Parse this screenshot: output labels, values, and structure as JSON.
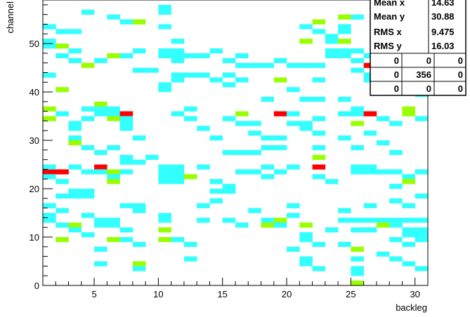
{
  "chart_data": {
    "type": "heatmap",
    "xlabel": "backleg",
    "ylabel": "channel",
    "xlim": [
      1,
      31
    ],
    "ylim": [
      0,
      59
    ],
    "x_ticks": [
      "5",
      "10",
      "15",
      "20",
      "25",
      "30"
    ],
    "y_ticks": [
      "0",
      "10",
      "20",
      "30",
      "40",
      "50"
    ],
    "colors": {
      "low": "#33ffff",
      "mid": "#99ff00",
      "high": "#ff0000"
    },
    "cells": [
      [
        1,
        53,
        1
      ],
      [
        2,
        52,
        1
      ],
      [
        3,
        52,
        1
      ],
      [
        6,
        55,
        1
      ],
      [
        7,
        54,
        1
      ],
      [
        4,
        56,
        1
      ],
      [
        1,
        50,
        1
      ],
      [
        1,
        49,
        1
      ],
      [
        2,
        47,
        1
      ],
      [
        3,
        48,
        1
      ],
      [
        3,
        46,
        1
      ],
      [
        5,
        46,
        1
      ],
      [
        4,
        45,
        2
      ],
      [
        6,
        47,
        2
      ],
      [
        7,
        47,
        1
      ],
      [
        8,
        48,
        1
      ],
      [
        8,
        44,
        1
      ],
      [
        9,
        44,
        1
      ],
      [
        2,
        49,
        2
      ],
      [
        8,
        54,
        2
      ],
      [
        10,
        57,
        1
      ],
      [
        10,
        56,
        1
      ],
      [
        10,
        53,
        1
      ],
      [
        10,
        48,
        1
      ],
      [
        10,
        47,
        1
      ],
      [
        11,
        50,
        1
      ],
      [
        11,
        48,
        1
      ],
      [
        11,
        47,
        1
      ],
      [
        11,
        46,
        1
      ],
      [
        12,
        47,
        1
      ],
      [
        13,
        47,
        1
      ],
      [
        14,
        48,
        1
      ],
      [
        15,
        46,
        1
      ],
      [
        16,
        47,
        1
      ],
      [
        11,
        42,
        1
      ],
      [
        11,
        43,
        1
      ],
      [
        10,
        40,
        1
      ],
      [
        10,
        41,
        1
      ],
      [
        12,
        43,
        1
      ],
      [
        13,
        43,
        1
      ],
      [
        14,
        42,
        1
      ],
      [
        15,
        43,
        1
      ],
      [
        15,
        41,
        1
      ],
      [
        16,
        45,
        1
      ],
      [
        17,
        45,
        1
      ],
      [
        18,
        45,
        1
      ],
      [
        19,
        46,
        1
      ],
      [
        20,
        45,
        1
      ],
      [
        21,
        45,
        1
      ],
      [
        22,
        45,
        1
      ],
      [
        22,
        42,
        1
      ],
      [
        19,
        42,
        2
      ],
      [
        20,
        40,
        1
      ],
      [
        16,
        42,
        1
      ],
      [
        21,
        53,
        1
      ],
      [
        22,
        52,
        1
      ],
      [
        22,
        54,
        2
      ],
      [
        23,
        51,
        1
      ],
      [
        21,
        50,
        2
      ],
      [
        23,
        50,
        1
      ],
      [
        24,
        52,
        1
      ],
      [
        24,
        53,
        1
      ],
      [
        24,
        55,
        2
      ],
      [
        24,
        50,
        2
      ],
      [
        23,
        47,
        1
      ],
      [
        23,
        48,
        1
      ],
      [
        24,
        48,
        1
      ],
      [
        24,
        47,
        1
      ],
      [
        25,
        48,
        1
      ],
      [
        25,
        46,
        1
      ],
      [
        26,
        47,
        1
      ],
      [
        26,
        45,
        3
      ],
      [
        27,
        45,
        1
      ],
      [
        28,
        45,
        1
      ],
      [
        29,
        47,
        1
      ],
      [
        30,
        47,
        1
      ],
      [
        27,
        50,
        1
      ],
      [
        30,
        46,
        1
      ],
      [
        25,
        59,
        1
      ],
      [
        26,
        59,
        1
      ],
      [
        25,
        55,
        1
      ],
      [
        25,
        44,
        1
      ],
      [
        26,
        43,
        1
      ],
      [
        26,
        42,
        1
      ],
      [
        27,
        40,
        1
      ],
      [
        29,
        41,
        1
      ],
      [
        30,
        39,
        1
      ],
      [
        1,
        43,
        1
      ],
      [
        2,
        40,
        2
      ],
      [
        1,
        36,
        2
      ],
      [
        1,
        34,
        2
      ],
      [
        2,
        35,
        1
      ],
      [
        3,
        32,
        1
      ],
      [
        3,
        33,
        1
      ],
      [
        4,
        34,
        1
      ],
      [
        4,
        36,
        1
      ],
      [
        5,
        36,
        1
      ],
      [
        5,
        37,
        2
      ],
      [
        5,
        35,
        1
      ],
      [
        6,
        36,
        1
      ],
      [
        6,
        35,
        1
      ],
      [
        6,
        34,
        2
      ],
      [
        7,
        35,
        3
      ],
      [
        7,
        34,
        1
      ],
      [
        7,
        33,
        1
      ],
      [
        7,
        32,
        1
      ],
      [
        3,
        30,
        1
      ],
      [
        3,
        29,
        2
      ],
      [
        4,
        28,
        1
      ],
      [
        5,
        27,
        1
      ],
      [
        6,
        28,
        1
      ],
      [
        8,
        30,
        1
      ],
      [
        9,
        26,
        1
      ],
      [
        8,
        25,
        1
      ],
      [
        7,
        26,
        1
      ],
      [
        11,
        35,
        1
      ],
      [
        12,
        34,
        1
      ],
      [
        12,
        36,
        1
      ],
      [
        13,
        32,
        1
      ],
      [
        14,
        30,
        1
      ],
      [
        15,
        34,
        1
      ],
      [
        16,
        35,
        2
      ],
      [
        16,
        33,
        1
      ],
      [
        17,
        33,
        1
      ],
      [
        17,
        31,
        1
      ],
      [
        18,
        30,
        1
      ],
      [
        15,
        27,
        1
      ],
      [
        16,
        27,
        1
      ],
      [
        17,
        27,
        1
      ],
      [
        18,
        28,
        1
      ],
      [
        19,
        28,
        1
      ],
      [
        19,
        30,
        1
      ],
      [
        18,
        38,
        1
      ],
      [
        19,
        35,
        3
      ],
      [
        20,
        35,
        1
      ],
      [
        20,
        33,
        1
      ],
      [
        21,
        33,
        1
      ],
      [
        21,
        32,
        1
      ],
      [
        22,
        34,
        1
      ],
      [
        22,
        31,
        1
      ],
      [
        22,
        28,
        1
      ],
      [
        21,
        38,
        1
      ],
      [
        22,
        38,
        1
      ],
      [
        24,
        38,
        1
      ],
      [
        24,
        35,
        1
      ],
      [
        25,
        36,
        1
      ],
      [
        25,
        35,
        1
      ],
      [
        26,
        35,
        3
      ],
      [
        27,
        34,
        1
      ],
      [
        28,
        33,
        1
      ],
      [
        29,
        35,
        2
      ],
      [
        29,
        36,
        2
      ],
      [
        30,
        34,
        1
      ],
      [
        25,
        33,
        2
      ],
      [
        26,
        31,
        1
      ],
      [
        27,
        29,
        1
      ],
      [
        28,
        27,
        1
      ],
      [
        24,
        30,
        1
      ],
      [
        25,
        28,
        1
      ],
      [
        1,
        23,
        3
      ],
      [
        2,
        23,
        3
      ],
      [
        1,
        22,
        1
      ],
      [
        1,
        24,
        1
      ],
      [
        3,
        24,
        1
      ],
      [
        4,
        23,
        1
      ],
      [
        5,
        24,
        3
      ],
      [
        5,
        23,
        1
      ],
      [
        6,
        23,
        2
      ],
      [
        6,
        22,
        1
      ],
      [
        6,
        21,
        2
      ],
      [
        7,
        25,
        1
      ],
      [
        7,
        23,
        1
      ],
      [
        2,
        21,
        1
      ],
      [
        3,
        19,
        1
      ],
      [
        4,
        19,
        1
      ],
      [
        2,
        18,
        1
      ],
      [
        3,
        18,
        1
      ],
      [
        4,
        18,
        1
      ],
      [
        1,
        16,
        1
      ],
      [
        2,
        15,
        1
      ],
      [
        10,
        24,
        1
      ],
      [
        11,
        24,
        1
      ],
      [
        10,
        23,
        1
      ],
      [
        11,
        23,
        1
      ],
      [
        10,
        22,
        1
      ],
      [
        11,
        22,
        1
      ],
      [
        10,
        21,
        1
      ],
      [
        11,
        21,
        1
      ],
      [
        12,
        22,
        2
      ],
      [
        13,
        24,
        1
      ],
      [
        14,
        21,
        1
      ],
      [
        15,
        20,
        1
      ],
      [
        15,
        19,
        1
      ],
      [
        14,
        19,
        1
      ],
      [
        16,
        23,
        1
      ],
      [
        17,
        23,
        1
      ],
      [
        18,
        24,
        1
      ],
      [
        18,
        22,
        1
      ],
      [
        19,
        23,
        1
      ],
      [
        20,
        24,
        1
      ],
      [
        22,
        24,
        3
      ],
      [
        22,
        26,
        2
      ],
      [
        22,
        22,
        1
      ],
      [
        23,
        21,
        1
      ],
      [
        25,
        24,
        1
      ],
      [
        25,
        23,
        1
      ],
      [
        26,
        24,
        1
      ],
      [
        26,
        23,
        1
      ],
      [
        27,
        23,
        1
      ],
      [
        28,
        23,
        1
      ],
      [
        29,
        22,
        1
      ],
      [
        30,
        23,
        1
      ],
      [
        29,
        21,
        2
      ],
      [
        28,
        20,
        1
      ],
      [
        30,
        18,
        1
      ],
      [
        29,
        16,
        1
      ],
      [
        28,
        17,
        1
      ],
      [
        1,
        14,
        1
      ],
      [
        1,
        13,
        1
      ],
      [
        2,
        12,
        1
      ],
      [
        3,
        12,
        2
      ],
      [
        3,
        11,
        1
      ],
      [
        2,
        9,
        2
      ],
      [
        4,
        14,
        1
      ],
      [
        5,
        13,
        1
      ],
      [
        5,
        12,
        1
      ],
      [
        6,
        13,
        1
      ],
      [
        6,
        12,
        1
      ],
      [
        7,
        16,
        1
      ],
      [
        8,
        15,
        1
      ],
      [
        8,
        16,
        1
      ],
      [
        7,
        11,
        1
      ],
      [
        6,
        9,
        2
      ],
      [
        7,
        9,
        1
      ],
      [
        4,
        10,
        1
      ],
      [
        5,
        7,
        1
      ],
      [
        8,
        8,
        1
      ],
      [
        8,
        4,
        2
      ],
      [
        8,
        3,
        1
      ],
      [
        5,
        4,
        1
      ],
      [
        10,
        14,
        1
      ],
      [
        10,
        13,
        1
      ],
      [
        10,
        11,
        2
      ],
      [
        10,
        9,
        2
      ],
      [
        11,
        9,
        1
      ],
      [
        12,
        8,
        1
      ],
      [
        13,
        13,
        1
      ],
      [
        13,
        16,
        1
      ],
      [
        14,
        17,
        1
      ],
      [
        15,
        13,
        1
      ],
      [
        16,
        12,
        1
      ],
      [
        17,
        15,
        1
      ],
      [
        18,
        13,
        1
      ],
      [
        18,
        12,
        2
      ],
      [
        19,
        13,
        2
      ],
      [
        19,
        12,
        1
      ],
      [
        20,
        14,
        1
      ],
      [
        20,
        16,
        1
      ],
      [
        21,
        12,
        2
      ],
      [
        21,
        10,
        1
      ],
      [
        21,
        9,
        1
      ],
      [
        22,
        8,
        1
      ],
      [
        20,
        7,
        1
      ],
      [
        21,
        4,
        1
      ],
      [
        21,
        5,
        1
      ],
      [
        22,
        3,
        1
      ],
      [
        12,
        5,
        1
      ],
      [
        24,
        13,
        1
      ],
      [
        25,
        13,
        1
      ],
      [
        26,
        13,
        1
      ],
      [
        27,
        13,
        1
      ],
      [
        28,
        13,
        1
      ],
      [
        29,
        13,
        1
      ],
      [
        30,
        13,
        1
      ],
      [
        25,
        11,
        1
      ],
      [
        26,
        11,
        1
      ],
      [
        27,
        12,
        2
      ],
      [
        28,
        12,
        1
      ],
      [
        29,
        11,
        1
      ],
      [
        30,
        11,
        1
      ],
      [
        29,
        10,
        1
      ],
      [
        30,
        10,
        1
      ],
      [
        28,
        9,
        1
      ],
      [
        29,
        8,
        1
      ],
      [
        30,
        9,
        1
      ],
      [
        24,
        8,
        1
      ],
      [
        25,
        7,
        2
      ],
      [
        26,
        11,
        1
      ],
      [
        25,
        5,
        1
      ],
      [
        27,
        6,
        1
      ],
      [
        28,
        5,
        1
      ],
      [
        29,
        4,
        1
      ],
      [
        30,
        3,
        1
      ],
      [
        25,
        3,
        1
      ],
      [
        25,
        2,
        1
      ],
      [
        25,
        0,
        2
      ],
      [
        26,
        16,
        1
      ],
      [
        24,
        15,
        1
      ],
      [
        23,
        11,
        1
      ]
    ],
    "stats": {
      "rows": [
        {
          "label": "Mean x",
          "value": "14.63"
        },
        {
          "label": "Mean y",
          "value": "30.88"
        },
        {
          "label": "RMS x",
          "value": "9.475"
        },
        {
          "label": "RMS y",
          "value": "16.03"
        }
      ],
      "grid": [
        [
          "0",
          "0",
          "0"
        ],
        [
          "0",
          "356",
          "0"
        ],
        [
          "0",
          "0",
          "0"
        ]
      ]
    }
  }
}
